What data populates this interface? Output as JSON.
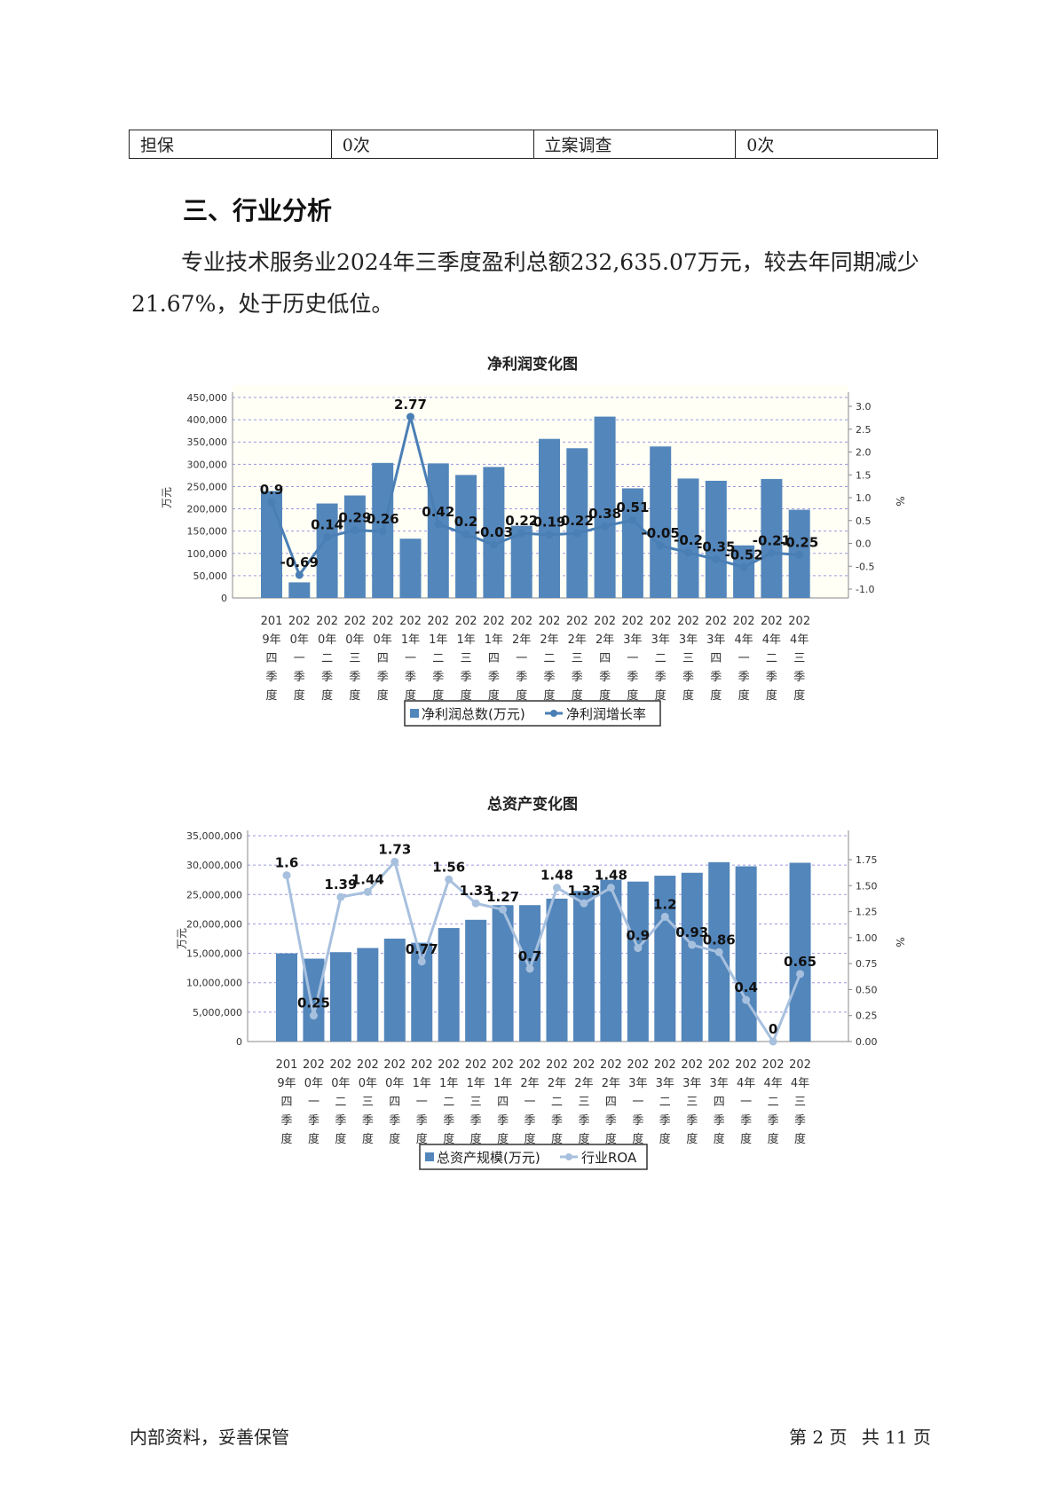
{
  "info_table": {
    "cells": [
      "担保",
      "0次",
      "立案调查",
      "0次"
    ]
  },
  "section": {
    "heading": "三、行业分析",
    "paragraph": "专业技术服务业2024年三季度盈利总额232,635.07万元，较去年同期减少21.67%，处于历史低位。"
  },
  "footer": {
    "left": "内部资料，妥善保管",
    "page_label": "第 2 页",
    "total_label": "共 11 页"
  },
  "colors": {
    "bar": "#5386bb",
    "profit_line": "#4a7fb5",
    "roa_line": "#a7c0de",
    "grid": "#9a9ae0"
  },
  "chart_data": [
    {
      "type": "bar+line",
      "title": "净利润变化图",
      "ylabel": "万元",
      "y2label": "%",
      "ylim": [
        0,
        450000
      ],
      "y2lim": [
        -1.0,
        3.0
      ],
      "y_ticks": [
        "0",
        "50,000",
        "100,000",
        "150,000",
        "200,000",
        "250,000",
        "300,000",
        "350,000",
        "400,000",
        "450,000"
      ],
      "y2_ticks": [
        "-1.0",
        "-0.5",
        "0.0",
        "0.5",
        "1.0",
        "1.5",
        "2.0",
        "2.5",
        "3.0"
      ],
      "categories": [
        "2019年四季度",
        "2020年一季度",
        "2020年二季度",
        "2020年三季度",
        "2020年四季度",
        "2021年一季度",
        "2021年二季度",
        "2021年三季度",
        "2021年四季度",
        "2022年一季度",
        "2022年二季度",
        "2022年三季度",
        "2022年四季度",
        "2023年一季度",
        "2023年二季度",
        "2023年三季度",
        "2023年四季度",
        "2024年一季度",
        "2024年二季度",
        "2024年三季度"
      ],
      "series": [
        {
          "name": "净利润总数(万元)",
          "kind": "bar",
          "values": [
            240000,
            35000,
            212000,
            230000,
            303000,
            133000,
            302000,
            276000,
            294000,
            162000,
            357000,
            336000,
            407000,
            246000,
            340000,
            268000,
            263000,
            118000,
            267000,
            198000
          ]
        },
        {
          "name": "净利润增长率",
          "kind": "line",
          "values": [
            0.9,
            -0.69,
            0.14,
            0.29,
            0.26,
            2.77,
            0.42,
            0.2,
            -0.03,
            0.22,
            0.19,
            0.22,
            0.38,
            0.51,
            -0.05,
            -0.2,
            -0.35,
            -0.52,
            -0.21,
            -0.25
          ]
        }
      ],
      "legend": "bottom"
    },
    {
      "type": "bar+line",
      "title": "总资产变化图",
      "ylabel": "万元",
      "y2label": "%",
      "ylim": [
        0,
        35000000
      ],
      "y2lim": [
        0,
        1.95
      ],
      "y_ticks": [
        "0",
        "5,000,000",
        "10,000,000",
        "15,000,000",
        "20,000,000",
        "25,000,000",
        "30,000,000",
        "35,000,000"
      ],
      "y2_ticks": [
        "0.00",
        "0.25",
        "0.50",
        "0.75",
        "1.00",
        "1.25",
        "1.50",
        "1.75"
      ],
      "categories": [
        "2019年四季度",
        "2020年一季度",
        "2020年二季度",
        "2020年三季度",
        "2020年四季度",
        "2021年一季度",
        "2021年二季度",
        "2021年三季度",
        "2021年四季度",
        "2022年一季度",
        "2022年二季度",
        "2022年三季度",
        "2022年四季度",
        "2023年一季度",
        "2023年二季度",
        "2023年三季度",
        "2023年四季度",
        "2024年一季度",
        "2024年二季度",
        "2024年三季度"
      ],
      "series": [
        {
          "name": "总资产规模(万元)",
          "kind": "bar",
          "values": [
            15000000,
            14100000,
            15200000,
            15900000,
            17500000,
            16800000,
            19300000,
            20700000,
            23200000,
            23200000,
            24300000,
            25600000,
            27500000,
            27200000,
            28200000,
            28700000,
            30500000,
            29800000,
            0,
            30400000
          ]
        },
        {
          "name": "行业ROA",
          "kind": "line",
          "values": [
            1.6,
            0.25,
            1.39,
            1.44,
            1.73,
            0.77,
            1.56,
            1.33,
            1.27,
            0.7,
            1.48,
            1.33,
            1.48,
            0.9,
            1.2,
            0.93,
            0.86,
            0.4,
            0,
            0.65
          ]
        }
      ],
      "legend": "bottom"
    }
  ]
}
